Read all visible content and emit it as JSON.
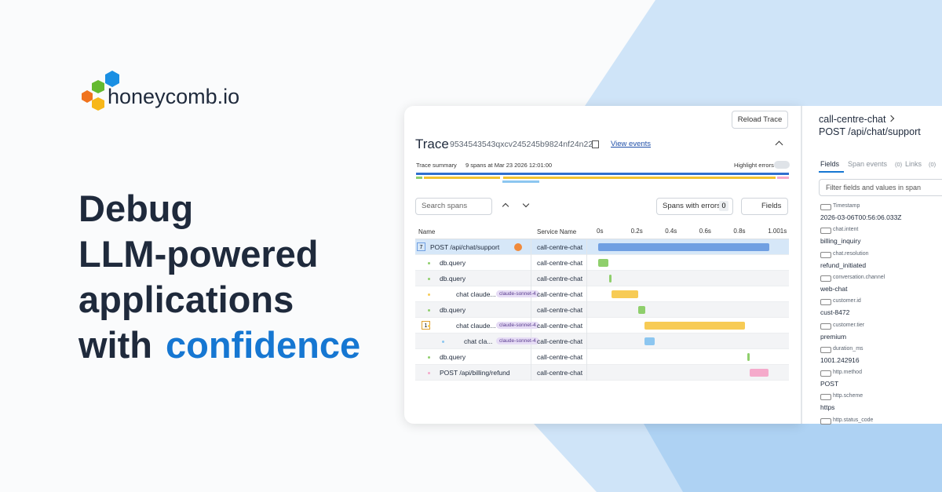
{
  "brand": "honeycomb.io",
  "headline": {
    "lines": [
      "Debug",
      "LLM-powered",
      "applications"
    ],
    "prefix": "with",
    "highlight": "confidence"
  },
  "trace": {
    "reload": "Reload Trace",
    "title": "Trace",
    "trace_id": "9534543543qxcv245245b9824nf24n22",
    "view_events": "View events",
    "summary_label": "Trace summary",
    "summary": "9 spans at Mar 23 2026 12:01:00",
    "highlight_errors": "Highlight errors",
    "search_placeholder": "Search spans",
    "errors_button": "Spans with errors",
    "error_count": "0",
    "fields_button": "Fields",
    "columns": [
      "Name",
      "Service Name"
    ],
    "ticks": [
      {
        "value": 0,
        "label": "0s"
      },
      {
        "value": 0.2,
        "label": "0.2s"
      },
      {
        "value": 0.4,
        "label": "0.4s"
      },
      {
        "value": 0.6,
        "label": "0.6s"
      },
      {
        "value": 0.8,
        "label": "0.8s"
      },
      {
        "value": 1.001,
        "label": "1.001s"
      }
    ],
    "spans": [
      {
        "name": "POST /api/chat/support",
        "service": "call-centre-chat",
        "depth": 0,
        "count": "7",
        "color": "#6f9fe2",
        "start": 0,
        "duration": 1.0
      },
      {
        "name": "db.query",
        "service": "call-centre-chat",
        "depth": 1,
        "color": "#8fcf6c",
        "start": 0,
        "duration": 0.06
      },
      {
        "name": "db.query",
        "service": "call-centre-chat",
        "depth": 1,
        "color": "#8fcf6c",
        "start": 0.065,
        "duration": 0.012
      },
      {
        "name": "chat claude...",
        "badge": "claude-sonnet-4",
        "service": "call-centre-chat",
        "depth": 1,
        "color": "#f7cb55",
        "start": 0.078,
        "duration": 0.155
      },
      {
        "name": "db.query",
        "service": "call-centre-chat",
        "depth": 1,
        "color": "#8fcf6c",
        "start": 0.233,
        "duration": 0.042
      },
      {
        "name": "chat claude...",
        "badge": "claude-sonnet-4",
        "service": "call-centre-chat",
        "depth": 1,
        "count": "1",
        "color": "#f7cb55",
        "start": 0.27,
        "duration": 0.59
      },
      {
        "name": "chat cla...",
        "badge": "claude-sonnet-4",
        "service": "call-centre-chat",
        "depth": 2,
        "color": "#8cc6f0",
        "start": 0.27,
        "duration": 0.06
      },
      {
        "name": "db.query",
        "service": "call-centre-chat",
        "depth": 1,
        "color": "#8fcf6c",
        "start": 0.87,
        "duration": 0.014
      },
      {
        "name": "POST /api/billing/refund",
        "service": "call-centre-chat",
        "depth": 1,
        "color": "#f5aacb",
        "start": 0.885,
        "duration": 0.11
      }
    ]
  },
  "detail": {
    "service": "call-centre-chat",
    "route": "POST /api/chat/support",
    "tabs": [
      {
        "label": "Fields"
      },
      {
        "label": "Span events",
        "count": "(0)"
      },
      {
        "label": "Links",
        "count": "(0)"
      }
    ],
    "filter_placeholder": "Filter fields and values in span",
    "fields": [
      {
        "key": "Timestamp",
        "value": "2026-03-06T00:56:06.033Z"
      },
      {
        "key": "chat.intent",
        "value": "billing_inquiry"
      },
      {
        "key": "chat.resolution",
        "value": "refund_initiated"
      },
      {
        "key": "conversation.channel",
        "value": "web-chat"
      },
      {
        "key": "customer.id",
        "value": "cust-8472"
      },
      {
        "key": "customer.tier",
        "value": "premium"
      },
      {
        "key": "duration_ms",
        "value": "1001.242916"
      },
      {
        "key": "http.method",
        "value": "POST"
      },
      {
        "key": "http.scheme",
        "value": "https"
      },
      {
        "key": "http.status_code"
      }
    ]
  }
}
